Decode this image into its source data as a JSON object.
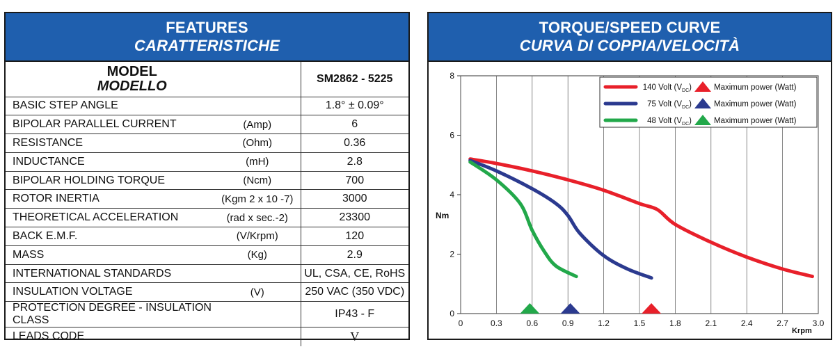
{
  "features": {
    "title": "FEATURES",
    "title_it": "CARATTERISTICHE",
    "model_label": "MODEL",
    "model_label_it": "MODELLO",
    "model_value": "SM2862 - 5225",
    "rows": [
      {
        "name": "BASIC STEP ANGLE",
        "unit": "",
        "value": "1.8°  ± 0.09°"
      },
      {
        "name": "BIPOLAR PARALLEL CURRENT",
        "unit": "(Amp)",
        "value": "6"
      },
      {
        "name": "RESISTANCE",
        "unit": "(Ohm)",
        "value": "0.36"
      },
      {
        "name": "INDUCTANCE",
        "unit": "(mH)",
        "value": "2.8"
      },
      {
        "name": "BIPOLAR HOLDING TORQUE",
        "unit": "(Ncm)",
        "value": "700"
      },
      {
        "name": "ROTOR INERTIA",
        "unit": "(Kgm 2 x 10 -7)",
        "value": "3000"
      },
      {
        "name": "THEORETICAL ACCELERATION",
        "unit": "(rad x sec.-2)",
        "value": "23300"
      },
      {
        "name": "BACK E.M.F.",
        "unit": "(V/Krpm)",
        "value": "120"
      },
      {
        "name": "MASS",
        "unit": "(Kg)",
        "value": "2.9"
      },
      {
        "name": "INTERNATIONAL STANDARDS",
        "unit": "",
        "value": "UL, CSA, CE, RoHS"
      },
      {
        "name": "INSULATION VOLTAGE",
        "unit": "(V)",
        "value": "250 VAC (350 VDC)"
      },
      {
        "name": "PROTECTION DEGREE - INSULATION CLASS",
        "unit": "",
        "value": "IP43 - F"
      },
      {
        "name": "LEADS CODE",
        "unit": "",
        "value": "V"
      }
    ]
  },
  "curve": {
    "title": "TORQUE/SPEED CURVE",
    "title_it": "CURVA DI COPPIA/VELOCITÀ"
  },
  "chart_data": {
    "type": "line",
    "ylabel": "Nm",
    "xlabel": "Krpm",
    "xlim": [
      0,
      3.0
    ],
    "ylim": [
      0,
      8
    ],
    "x_ticks": [
      "0",
      "0.3",
      "0.6",
      "0.9",
      "1.2",
      "1.5",
      "1.8",
      "2.1",
      "2.4",
      "2.7",
      "3.0"
    ],
    "y_ticks": [
      "0",
      "2",
      "4",
      "6",
      "8"
    ],
    "grid": true,
    "legend_position": "top-right",
    "marker_label": "Maximum power (Watt)",
    "series": [
      {
        "name": "140 Volt (VDC)",
        "color": "#e8202a",
        "points": [
          [
            0.08,
            5.2
          ],
          [
            0.3,
            5.05
          ],
          [
            0.6,
            4.8
          ],
          [
            0.9,
            4.5
          ],
          [
            1.2,
            4.15
          ],
          [
            1.5,
            3.7
          ],
          [
            1.65,
            3.5
          ],
          [
            1.8,
            3.0
          ],
          [
            2.1,
            2.4
          ],
          [
            2.4,
            1.9
          ],
          [
            2.7,
            1.5
          ],
          [
            2.95,
            1.25
          ]
        ],
        "max_power_x": 1.6
      },
      {
        "name": "75 Volt (VDC)",
        "color": "#2b3a8f",
        "points": [
          [
            0.08,
            5.15
          ],
          [
            0.3,
            4.8
          ],
          [
            0.6,
            4.2
          ],
          [
            0.8,
            3.7
          ],
          [
            0.9,
            3.3
          ],
          [
            1.0,
            2.7
          ],
          [
            1.2,
            1.95
          ],
          [
            1.4,
            1.5
          ],
          [
            1.6,
            1.2
          ]
        ],
        "max_power_x": 0.92
      },
      {
        "name": "48 Volt (VDC)",
        "color": "#22a84a",
        "points": [
          [
            0.08,
            5.1
          ],
          [
            0.3,
            4.5
          ],
          [
            0.5,
            3.7
          ],
          [
            0.6,
            2.8
          ],
          [
            0.7,
            2.1
          ],
          [
            0.8,
            1.6
          ],
          [
            0.97,
            1.25
          ]
        ],
        "max_power_x": 0.58
      }
    ]
  }
}
